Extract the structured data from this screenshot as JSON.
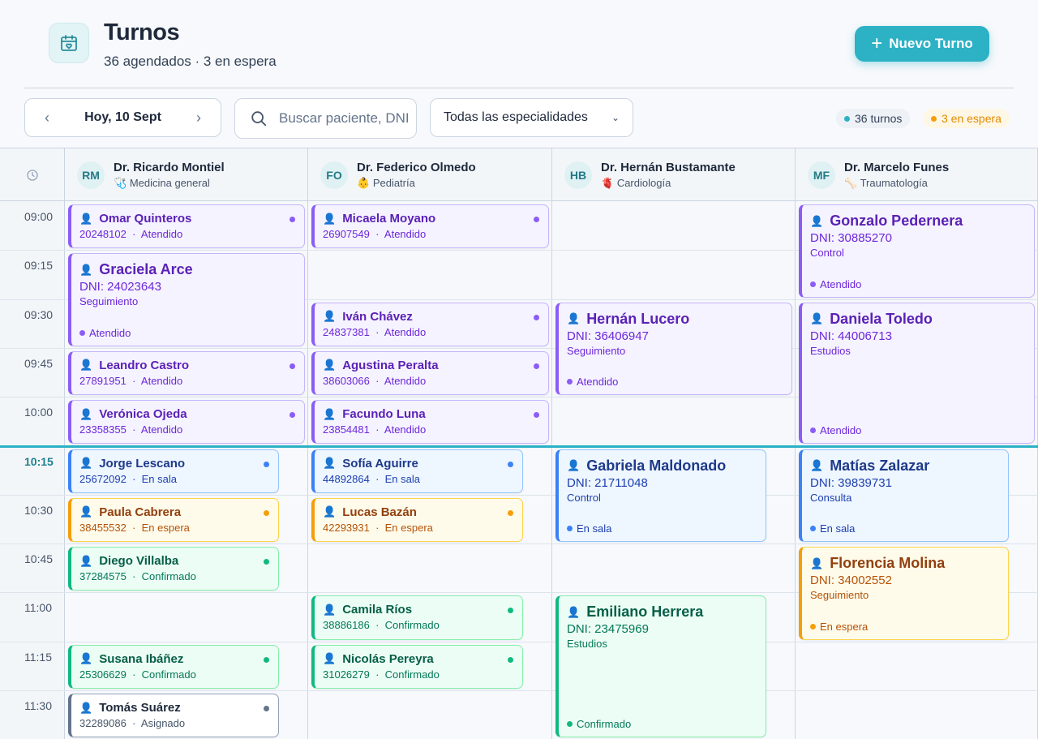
{
  "header": {
    "title": "Turnos",
    "subtitle": "36 agendados · 3 en espera",
    "icon": "calendar-heart-icon",
    "new_button": "Nuevo Turno"
  },
  "toolbar": {
    "date_label": "Hoy, 10 Sept",
    "search_placeholder": "Buscar paciente, DNI...",
    "specialty_label": "Todas las especialidades",
    "total_pill": "36 turnos",
    "wait_pill": "3 en espera"
  },
  "doctors": [
    {
      "initials": "RM",
      "name": "Dr. Ricardo Montiel",
      "specialty": "Medicina general",
      "spec_icon": "🩺"
    },
    {
      "initials": "FO",
      "name": "Dr. Federico Olmedo",
      "specialty": "Pediatría",
      "spec_icon": "👶"
    },
    {
      "initials": "HB",
      "name": "Dr. Hernán Bustamante",
      "specialty": "Cardiología",
      "spec_icon": "🫀"
    },
    {
      "initials": "MF",
      "name": "Dr. Marcelo Funes",
      "specialty": "Traumatología",
      "spec_icon": "🦴"
    }
  ],
  "times": [
    "09:00",
    "09:15",
    "09:30",
    "09:45",
    "10:00",
    "10:15",
    "10:30",
    "10:45",
    "11:00",
    "11:15",
    "11:30"
  ],
  "current_time": "10:15",
  "appointments": [
    {
      "doc": 0,
      "slot": 0,
      "span": 1,
      "name": "Omar Quinteros",
      "dni": "20248102",
      "status": "Atendido",
      "color": "purple",
      "wide": true
    },
    {
      "doc": 0,
      "slot": 1,
      "span": 2,
      "name": "Graciela Arce",
      "dni": "DNI: 24023643",
      "reason": "Seguimiento",
      "status": "Atendido",
      "color": "purple",
      "wide": true
    },
    {
      "doc": 0,
      "slot": 3,
      "span": 1,
      "name": "Leandro Castro",
      "dni": "27891951",
      "status": "Atendido",
      "color": "purple",
      "wide": true
    },
    {
      "doc": 0,
      "slot": 4,
      "span": 1,
      "name": "Verónica Ojeda",
      "dni": "23358355",
      "status": "Atendido",
      "color": "purple",
      "wide": true
    },
    {
      "doc": 0,
      "slot": 5,
      "span": 1,
      "name": "Jorge Lescano",
      "dni": "25672092",
      "status": "En sala",
      "color": "blue",
      "wide": false
    },
    {
      "doc": 0,
      "slot": 6,
      "span": 1,
      "name": "Paula Cabrera",
      "dni": "38455532",
      "status": "En espera",
      "color": "orange",
      "wide": false
    },
    {
      "doc": 0,
      "slot": 7,
      "span": 1,
      "name": "Diego Villalba",
      "dni": "37284575",
      "status": "Confirmado",
      "color": "green",
      "wide": false
    },
    {
      "doc": 0,
      "slot": 9,
      "span": 1,
      "name": "Susana Ibáñez",
      "dni": "25306629",
      "status": "Confirmado",
      "color": "green",
      "wide": false
    },
    {
      "doc": 0,
      "slot": 10,
      "span": 1,
      "name": "Tomás Suárez",
      "dni": "32289086",
      "status": "Asignado",
      "color": "gray",
      "wide": false
    },
    {
      "doc": 1,
      "slot": 0,
      "span": 1,
      "name": "Micaela Moyano",
      "dni": "26907549",
      "status": "Atendido",
      "color": "purple",
      "wide": true
    },
    {
      "doc": 1,
      "slot": 2,
      "span": 1,
      "name": "Iván Chávez",
      "dni": "24837381",
      "status": "Atendido",
      "color": "purple",
      "wide": true
    },
    {
      "doc": 1,
      "slot": 3,
      "span": 1,
      "name": "Agustina Peralta",
      "dni": "38603066",
      "status": "Atendido",
      "color": "purple",
      "wide": true
    },
    {
      "doc": 1,
      "slot": 4,
      "span": 1,
      "name": "Facundo Luna",
      "dni": "23854481",
      "status": "Atendido",
      "color": "purple",
      "wide": true
    },
    {
      "doc": 1,
      "slot": 5,
      "span": 1,
      "name": "Sofía Aguirre",
      "dni": "44892864",
      "status": "En sala",
      "color": "blue",
      "wide": false
    },
    {
      "doc": 1,
      "slot": 6,
      "span": 1,
      "name": "Lucas Bazán",
      "dni": "42293931",
      "status": "En espera",
      "color": "orange",
      "wide": false
    },
    {
      "doc": 1,
      "slot": 8,
      "span": 1,
      "name": "Camila Ríos",
      "dni": "38886186",
      "status": "Confirmado",
      "color": "green",
      "wide": false
    },
    {
      "doc": 1,
      "slot": 9,
      "span": 1,
      "name": "Nicolás Pereyra",
      "dni": "31026279",
      "status": "Confirmado",
      "color": "green",
      "wide": false
    },
    {
      "doc": 2,
      "slot": 2,
      "span": 2,
      "name": "Hernán Lucero",
      "dni": "DNI: 36406947",
      "reason": "Seguimiento",
      "status": "Atendido",
      "color": "purple",
      "wide": true
    },
    {
      "doc": 2,
      "slot": 5,
      "span": 2,
      "name": "Gabriela Maldonado",
      "dni": "DNI: 21711048",
      "reason": "Control",
      "status": "En sala",
      "color": "blue",
      "wide": false
    },
    {
      "doc": 2,
      "slot": 8,
      "span": 3,
      "name": "Emiliano Herrera",
      "dni": "DNI: 23475969",
      "reason": "Estudios",
      "status": "Confirmado",
      "color": "green",
      "wide": false
    },
    {
      "doc": 3,
      "slot": 0,
      "span": 2,
      "name": "Gonzalo Pedernera",
      "dni": "DNI: 30885270",
      "reason": "Control",
      "status": "Atendido",
      "color": "purple",
      "wide": true
    },
    {
      "doc": 3,
      "slot": 2,
      "span": 3,
      "name": "Daniela Toledo",
      "dni": "DNI: 44006713",
      "reason": "Estudios",
      "status": "Atendido",
      "color": "purple",
      "wide": true
    },
    {
      "doc": 3,
      "slot": 5,
      "span": 2,
      "name": "Matías Zalazar",
      "dni": "DNI: 39839731",
      "reason": "Consulta",
      "status": "En sala",
      "color": "blue",
      "wide": false
    },
    {
      "doc": 3,
      "slot": 7,
      "span": 2,
      "name": "Florencia Molina",
      "dni": "DNI: 34002552",
      "reason": "Seguimiento",
      "status": "En espera",
      "color": "orange",
      "wide": false
    }
  ]
}
